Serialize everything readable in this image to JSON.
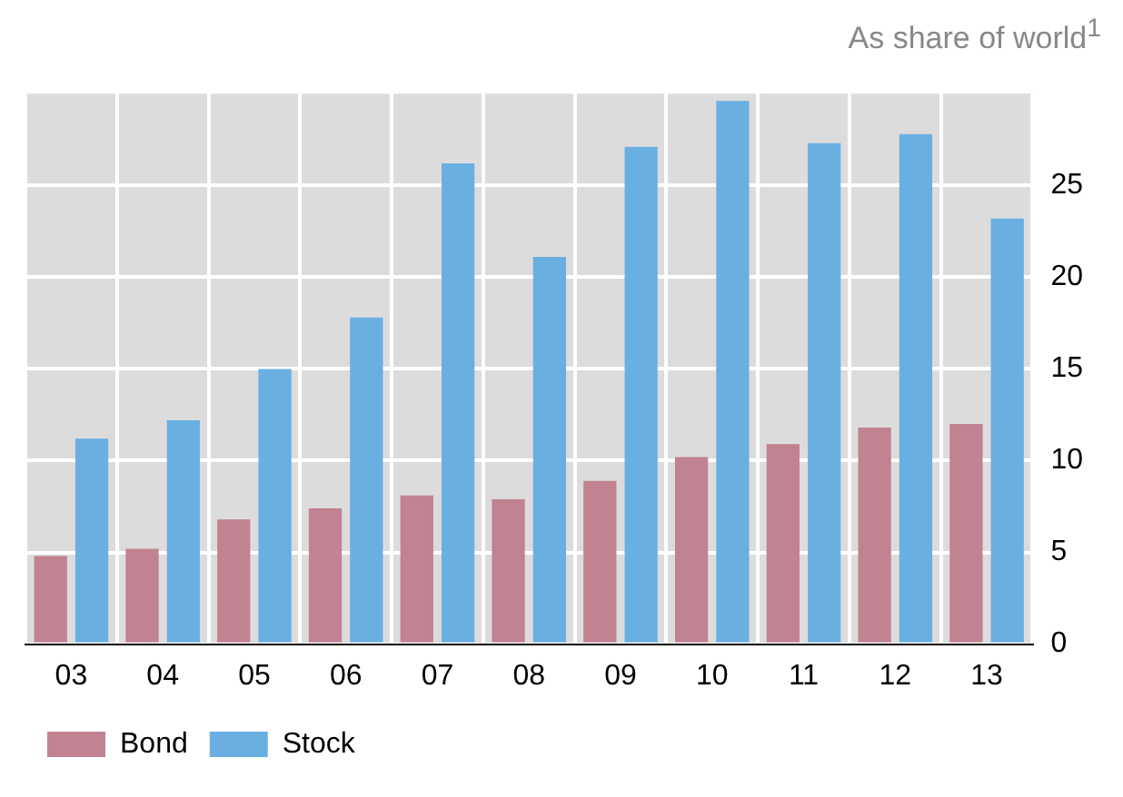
{
  "chart_data": {
    "type": "bar",
    "subtitle": "As share of world$^{1}$",
    "categories": [
      "03",
      "04",
      "05",
      "06",
      "07",
      "08",
      "09",
      "10",
      "11",
      "12",
      "13"
    ],
    "series": [
      {
        "name": "Bond",
        "color": "#c18291",
        "values": [
          4.8,
          5.2,
          6.8,
          7.4,
          8.1,
          7.9,
          8.9,
          10.2,
          10.9,
          11.8,
          12.0
        ]
      },
      {
        "name": "Stock",
        "color": "#6aafe1",
        "values": [
          11.2,
          12.2,
          15.0,
          17.8,
          26.2,
          21.1,
          27.1,
          29.6,
          27.3,
          27.8,
          23.2
        ]
      }
    ],
    "ylim": [
      0,
      30
    ],
    "yticks": [
      0,
      5,
      10,
      15,
      20,
      25
    ],
    "grid": true,
    "legend": "bottom left"
  }
}
